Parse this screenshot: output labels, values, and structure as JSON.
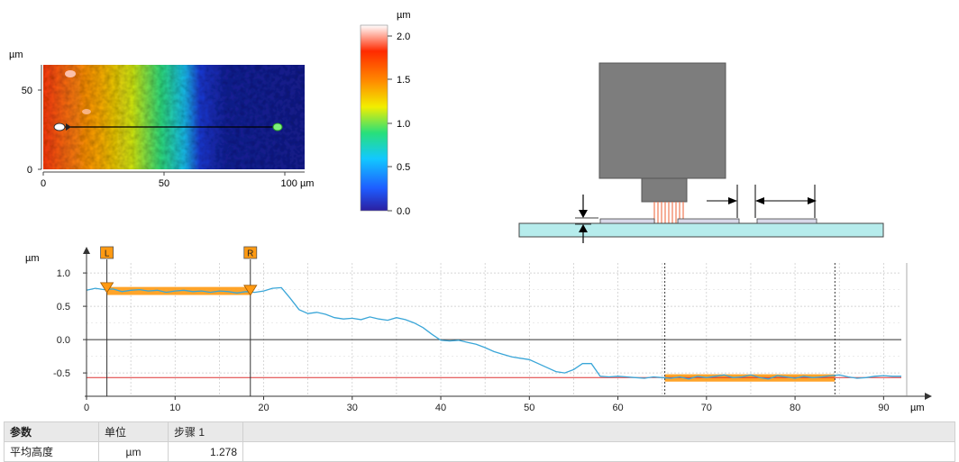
{
  "heatmap": {
    "unit_label": "µm",
    "y_ticks": [
      "50",
      "0"
    ],
    "x_ticks": [
      "0",
      "50",
      "100 µm"
    ]
  },
  "colorbar": {
    "unit_label": "µm",
    "ticks": [
      "2.0",
      "1.5",
      "1.0",
      "0.5",
      "0.0"
    ],
    "stops": [
      "#2b1fa0",
      "#1e5cff",
      "#12c8ff",
      "#28e07a",
      "#f2ee00",
      "#ff8a00",
      "#ff2a00",
      "#ffffff"
    ]
  },
  "chart_data": {
    "type": "line",
    "xlabel": "µm",
    "ylabel": "µm",
    "xlim": [
      0,
      92
    ],
    "ylim": [
      -0.85,
      1.15
    ],
    "x_ticks": [
      "0",
      "10",
      "20",
      "30",
      "40",
      "50",
      "60",
      "70",
      "80",
      "90"
    ],
    "y_ticks": [
      "1.0",
      "0.5",
      "0.0",
      "-0.5"
    ],
    "markers": [
      {
        "label": "L",
        "x": 2.3,
        "y": 0.76
      },
      {
        "label": "R",
        "x": 18.5,
        "y": 0.72
      }
    ],
    "reference_line_y": -0.57,
    "series": [
      {
        "x": [
          0,
          1,
          2,
          3,
          4,
          5,
          6,
          7,
          8,
          9,
          10,
          11,
          12,
          13,
          14,
          15,
          16,
          17,
          18,
          19,
          20,
          21,
          22,
          23,
          24,
          25,
          26,
          27,
          28,
          29,
          30,
          31,
          32,
          33,
          34,
          35,
          36,
          37,
          38,
          39,
          40,
          41,
          42,
          43,
          44,
          45,
          46,
          47,
          48,
          49,
          50,
          51,
          52,
          53,
          54,
          55,
          56,
          57,
          58,
          59,
          60,
          61,
          62,
          63,
          64,
          65,
          66,
          67,
          68,
          69,
          70,
          71,
          72,
          73,
          74,
          75,
          76,
          77,
          78,
          79,
          80,
          81,
          82,
          83,
          84,
          85,
          86,
          87,
          88,
          89,
          90,
          91,
          92
        ],
        "y": [
          0.74,
          0.77,
          0.75,
          0.76,
          0.72,
          0.74,
          0.75,
          0.73,
          0.74,
          0.71,
          0.73,
          0.74,
          0.72,
          0.73,
          0.71,
          0.73,
          0.72,
          0.7,
          0.72,
          0.71,
          0.73,
          0.77,
          0.78,
          0.62,
          0.45,
          0.39,
          0.41,
          0.38,
          0.33,
          0.31,
          0.32,
          0.3,
          0.34,
          0.31,
          0.29,
          0.33,
          0.3,
          0.25,
          0.18,
          0.08,
          -0.01,
          -0.02,
          -0.01,
          -0.04,
          -0.07,
          -0.12,
          -0.18,
          -0.22,
          -0.26,
          -0.28,
          -0.3,
          -0.36,
          -0.42,
          -0.48,
          -0.5,
          -0.45,
          -0.36,
          -0.36,
          -0.55,
          -0.56,
          -0.55,
          -0.56,
          -0.57,
          -0.58,
          -0.56,
          -0.57,
          -0.58,
          -0.56,
          -0.59,
          -0.55,
          -0.57,
          -0.55,
          -0.53,
          -0.57,
          -0.56,
          -0.53,
          -0.57,
          -0.59,
          -0.54,
          -0.56,
          -0.58,
          -0.55,
          -0.57,
          -0.56,
          -0.54,
          -0.53,
          -0.56,
          -0.58,
          -0.57,
          -0.55,
          -0.54,
          -0.55,
          -0.55
        ]
      }
    ],
    "highlight_regions": [
      {
        "x_start": 2.3,
        "x_end": 18.5,
        "y_low": 0.67,
        "y_high": 0.79
      },
      {
        "x_start": 65.3,
        "x_end": 84.5,
        "y_low": -0.63,
        "y_high": -0.52
      }
    ]
  },
  "table": {
    "headers": [
      "参数",
      "单位",
      "步骤 1"
    ],
    "rows": [
      [
        "平均高度",
        "µm",
        "1.278"
      ]
    ]
  }
}
